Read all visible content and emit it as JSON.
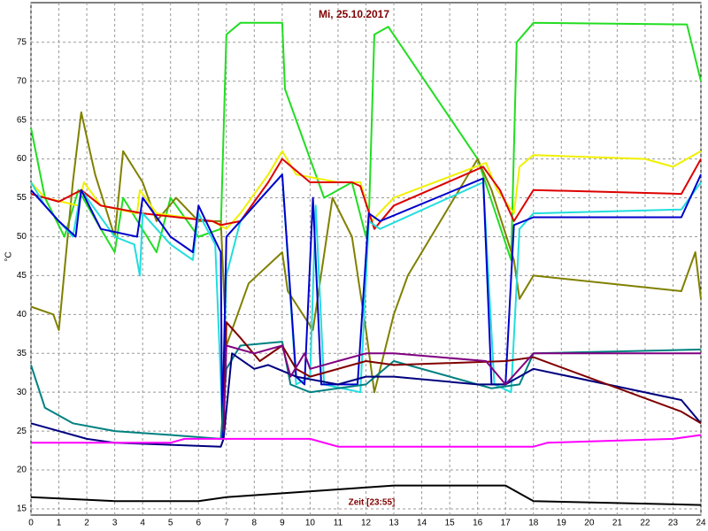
{
  "chart_data": {
    "type": "line",
    "title": "Mi, 25.10.2017",
    "xlabel": "Zeit [23:55]",
    "ylabel": "°C",
    "xlim": [
      0,
      24
    ],
    "ylim": [
      14.2,
      80.1
    ],
    "xticks": [
      0,
      1,
      2,
      3,
      4,
      5,
      6,
      7,
      8,
      9,
      10,
      11,
      12,
      13,
      14,
      15,
      16,
      17,
      18,
      19,
      20,
      21,
      22,
      23,
      24
    ],
    "yticks": [
      15,
      20,
      25,
      30,
      35,
      40,
      45,
      50,
      55,
      60,
      65,
      70,
      75
    ],
    "grid": true,
    "series": [
      {
        "color": "#22dd22",
        "x": [
          0,
          0.5,
          1.2,
          1.7,
          2.5,
          3,
          3.3,
          4.5,
          5,
          6,
          6.8,
          7,
          7.5,
          9,
          9.1,
          10.5,
          11.5,
          12,
          12.1,
          12.3,
          12.8,
          16,
          17.2,
          17.4,
          18,
          23.5,
          24
        ],
        "values": [
          64,
          55,
          50,
          56,
          51,
          48,
          55,
          48,
          55,
          50,
          51,
          76,
          77.5,
          77.5,
          69,
          55,
          57,
          50,
          52,
          76,
          77,
          60,
          47,
          75,
          77.5,
          77.3,
          70
        ]
      },
      {
        "color": "#808000",
        "x": [
          0,
          0.8,
          1,
          1.5,
          1.8,
          2.3,
          3,
          3.3,
          4,
          4.5,
          5.2,
          6,
          6.8,
          7,
          7.8,
          9,
          9.2,
          10.1,
          10.8,
          11.5,
          12,
          12.3,
          13,
          13.5,
          16,
          16.5,
          17.3,
          17.5,
          18,
          23.3,
          23.8,
          24
        ],
        "values": [
          41,
          40,
          38,
          57,
          66,
          58,
          50,
          61,
          57,
          52,
          55,
          52,
          52,
          36,
          44,
          48,
          43,
          38,
          55,
          50,
          38,
          30,
          40,
          45,
          60,
          56,
          47,
          42,
          45,
          43,
          48,
          42
        ]
      },
      {
        "color": "#f0f000",
        "x": [
          0,
          0.5,
          1.7,
          1.9,
          2.5,
          3.8,
          3.9,
          4.5,
          6.5,
          7,
          7.5,
          8.5,
          9,
          9.5,
          11,
          11.8,
          12.2,
          13,
          16.3,
          16.7,
          17.3,
          17.5,
          18,
          22,
          23,
          24
        ],
        "values": [
          57,
          55,
          54,
          57,
          54,
          53,
          56,
          53,
          52,
          51,
          53,
          58,
          61,
          58,
          57,
          57,
          52,
          55,
          59.5,
          56,
          53,
          59,
          60.5,
          60,
          59,
          61
        ]
      },
      {
        "color": "#dd0000",
        "x": [
          0,
          1,
          1.8,
          2.5,
          4,
          6.5,
          6.8,
          7.5,
          8.5,
          9,
          10,
          11.5,
          11.8,
          12.3,
          13,
          16.2,
          16.8,
          17.3,
          18,
          23.3,
          24
        ],
        "values": [
          55.5,
          54.5,
          56,
          54,
          53,
          52,
          51.5,
          52,
          57,
          60,
          57,
          57,
          56.5,
          51,
          54,
          59,
          56,
          52,
          56,
          55.5,
          60
        ]
      },
      {
        "color": "#22dddd",
        "x": [
          0,
          0.5,
          1.5,
          1.8,
          3,
          3.7,
          3.9,
          4,
          5,
          5.8,
          6,
          6.6,
          6.85,
          7,
          7.5,
          8.5,
          9,
          9.5,
          10,
          10.2,
          10.5,
          11.8,
          12.1,
          12.5,
          16.2,
          16.6,
          17.2,
          17.5,
          18,
          23.3,
          24
        ],
        "values": [
          57,
          54,
          50,
          56,
          50,
          49,
          45,
          53,
          49,
          47,
          53,
          49,
          27,
          45,
          52,
          56,
          58,
          31,
          32,
          54,
          31,
          30,
          52,
          51,
          57,
          31,
          30,
          51,
          53,
          53.5,
          57
        ]
      },
      {
        "color": "#0000cc",
        "x": [
          0,
          1,
          1.6,
          1.8,
          2.5,
          3.8,
          4,
          5,
          5.8,
          6,
          6.8,
          6.85,
          7,
          7.5,
          8.5,
          9,
          9.5,
          9.8,
          10.1,
          10.4,
          11.7,
          12.1,
          12.5,
          16.2,
          16.5,
          17,
          17.3,
          18,
          23.3,
          24
        ],
        "values": [
          56,
          52,
          50,
          56,
          51,
          50,
          55,
          50,
          48,
          54,
          48,
          24,
          50,
          52,
          56,
          58,
          32,
          31,
          55,
          31,
          31,
          53,
          52,
          57.5,
          31,
          31,
          51.5,
          52.5,
          52.5,
          58
        ]
      },
      {
        "color": "#008080",
        "x": [
          0,
          0.5,
          1.5,
          3,
          5,
          6.8,
          7,
          7.5,
          9,
          9.3,
          10,
          12,
          13,
          16,
          16.5,
          17.5,
          18,
          24
        ],
        "values": [
          33.5,
          28,
          26,
          25,
          24.5,
          24,
          33,
          36,
          36.5,
          31,
          30,
          31,
          34,
          31,
          30.5,
          31,
          35,
          35.5
        ]
      },
      {
        "color": "#000080",
        "x": [
          0,
          2,
          3,
          6.8,
          6.9,
          7.2,
          8,
          8.5,
          9.5,
          11,
          12,
          13,
          16,
          17,
          18,
          23.3,
          24
        ],
        "values": [
          26,
          24,
          23.5,
          23,
          24,
          35,
          33,
          33.5,
          32,
          31,
          32,
          32,
          31,
          31,
          33,
          29,
          26
        ]
      },
      {
        "color": "#800000",
        "x": [
          6.9,
          7,
          7.5,
          8.2,
          9,
          9.5,
          10,
          12,
          13,
          17,
          18,
          23.3,
          24
        ],
        "values": [
          25,
          39,
          37,
          34,
          36,
          33,
          32,
          34,
          33.5,
          34,
          34.5,
          27.5,
          26
        ]
      },
      {
        "color": "#800080",
        "x": [
          6.9,
          7,
          8,
          9,
          9.3,
          9.8,
          10,
          11,
          12,
          13,
          16.3,
          17,
          18,
          24
        ],
        "values": [
          25,
          36,
          35,
          36,
          32,
          35,
          33,
          34,
          35,
          35,
          34,
          31,
          35,
          35
        ]
      },
      {
        "color": "#ff00ff",
        "x": [
          0,
          5,
          5.5,
          10,
          11,
          18,
          18.5,
          23,
          24
        ],
        "values": [
          23.5,
          23.5,
          24,
          24,
          23,
          23,
          23.5,
          24,
          24.5
        ]
      },
      {
        "color": "#000000",
        "x": [
          0,
          3,
          6,
          7,
          9,
          11,
          13,
          17,
          18,
          24
        ],
        "values": [
          16.5,
          16,
          16,
          16.5,
          17,
          17.5,
          18,
          18,
          16,
          15.5
        ]
      }
    ]
  }
}
